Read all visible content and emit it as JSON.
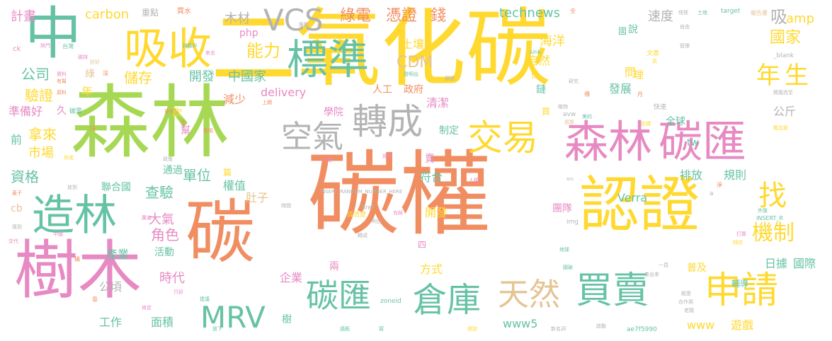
{
  "palette": {
    "orange": "#f08e62",
    "green": "#a6d854",
    "yellow": "#ffd92f",
    "pink": "#e78ac3",
    "teal": "#66c2a5",
    "gray": "#b3b3b3",
    "tan": "#e5c494",
    "blue": "#8da0cb"
  },
  "words": [
    {
      "text": "碳權",
      "color": "orange",
      "weight": 1
    },
    {
      "text": "二氧化碳",
      "color": "yellow",
      "weight": 0.9
    },
    {
      "text": "森林",
      "color": "green",
      "weight": 0.8
    },
    {
      "text": "認證",
      "color": "yellow",
      "weight": 0.6
    },
    {
      "text": "碳",
      "color": "orange",
      "weight": 0.6
    },
    {
      "text": "樹木",
      "color": "pink",
      "weight": 0.55
    },
    {
      "text": "中",
      "color": "teal",
      "weight": 0.55
    },
    {
      "text": "吸收",
      "color": "yellow",
      "weight": 0.5
    },
    {
      "text": "森林",
      "color": "pink",
      "weight": 0.45
    },
    {
      "text": "碳匯",
      "color": "pink",
      "weight": 0.45
    },
    {
      "text": "造林",
      "color": "teal",
      "weight": 0.45
    },
    {
      "text": "標準",
      "color": "teal",
      "weight": 0.42
    },
    {
      "text": "空氣",
      "color": "gray",
      "weight": 0.38
    },
    {
      "text": "轉成",
      "color": "gray",
      "weight": 0.38
    },
    {
      "text": "交易",
      "color": "yellow",
      "weight": 0.36
    },
    {
      "text": "買賣",
      "color": "teal",
      "weight": 0.36
    },
    {
      "text": "申請",
      "color": "yellow",
      "weight": 0.36
    },
    {
      "text": "倉庫",
      "color": "teal",
      "weight": 0.34
    },
    {
      "text": "天然",
      "color": "tan",
      "weight": 0.32
    },
    {
      "text": "碳匯",
      "color": "teal",
      "weight": 0.3
    },
    {
      "text": "MRV",
      "color": "teal",
      "weight": 0.28
    },
    {
      "text": "VCS",
      "color": "gray",
      "weight": 0.26
    },
    {
      "text": "找",
      "color": "yellow",
      "weight": 0.26
    },
    {
      "text": "機制",
      "color": "yellow",
      "weight": 0.24
    },
    {
      "text": "年",
      "color": "yellow",
      "weight": 0.22
    },
    {
      "text": "生",
      "color": "yellow",
      "weight": 0.22
    },
    {
      "text": "能力",
      "color": "yellow",
      "weight": 0.18
    },
    {
      "text": "綠電",
      "color": "orange",
      "weight": 0.16
    },
    {
      "text": "憑證",
      "color": "orange",
      "weight": 0.16
    },
    {
      "text": "錢",
      "color": "orange",
      "weight": 0.16
    },
    {
      "text": "計畫",
      "color": "pink",
      "weight": 0.12
    },
    {
      "text": "carbon",
      "color": "yellow",
      "weight": 0.12
    },
    {
      "text": "重點",
      "color": "gray",
      "weight": 0.08
    },
    {
      "text": "買水",
      "color": "orange",
      "weight": 0.06
    },
    {
      "text": "木材",
      "color": "gray",
      "weight": 0.12
    },
    {
      "text": "technews",
      "color": "teal",
      "weight": 0.12
    },
    {
      "text": "速度",
      "color": "gray",
      "weight": 0.12
    },
    {
      "text": "吸",
      "color": "gray",
      "weight": 0.16
    },
    {
      "text": "amp",
      "color": "yellow",
      "weight": 0.12
    },
    {
      "text": "國家",
      "color": "yellow",
      "weight": 0.14
    },
    {
      "text": "公司",
      "color": "teal",
      "weight": 0.14
    },
    {
      "text": "驗證",
      "color": "yellow",
      "weight": 0.14
    },
    {
      "text": "儲存",
      "color": "yellow",
      "weight": 0.14
    },
    {
      "text": "開發",
      "color": "teal",
      "weight": 0.12
    },
    {
      "text": "中國家",
      "color": "teal",
      "weight": 0.12
    },
    {
      "text": "CDM",
      "color": "tan",
      "weight": 0.16
    },
    {
      "text": "土壤",
      "color": "yellow",
      "weight": 0.12
    },
    {
      "text": "海洋",
      "color": "yellow",
      "weight": 0.12
    },
    {
      "text": "自然",
      "color": "yellow",
      "weight": 0.12
    },
    {
      "text": "人工",
      "color": "orange",
      "weight": 0.1
    },
    {
      "text": "政府",
      "color": "orange",
      "weight": 0.1
    },
    {
      "text": "減少",
      "color": "orange",
      "weight": 0.12
    },
    {
      "text": "delivery",
      "color": "pink",
      "weight": 0.12
    },
    {
      "text": "準備好",
      "color": "pink",
      "weight": 0.12
    },
    {
      "text": "拿來",
      "color": "yellow",
      "weight": 0.14
    },
    {
      "text": "市場",
      "color": "yellow",
      "weight": 0.12
    },
    {
      "text": "資格",
      "color": "teal",
      "weight": 0.14
    },
    {
      "text": "查驗",
      "color": "teal",
      "weight": 0.14
    },
    {
      "text": "單位",
      "color": "teal",
      "weight": 0.14
    },
    {
      "text": "聯合國",
      "color": "teal",
      "weight": 0.1
    },
    {
      "text": "角色",
      "color": "pink",
      "weight": 0.14
    },
    {
      "text": "大氣",
      "color": "pink",
      "weight": 0.12
    },
    {
      "text": "活動",
      "color": "teal",
      "weight": 0.1
    },
    {
      "text": "權值",
      "color": "teal",
      "weight": 0.1
    },
    {
      "text": "肚子",
      "color": "tan",
      "weight": 0.12
    },
    {
      "text": "公頃",
      "color": "gray",
      "weight": 0.12
    },
    {
      "text": "時代",
      "color": "pink",
      "weight": 0.12
    },
    {
      "text": "產業",
      "color": "teal",
      "weight": 0.12
    },
    {
      "text": "工作",
      "color": "teal",
      "weight": 0.12
    },
    {
      "text": "面積",
      "color": "teal",
      "weight": 0.12
    },
    {
      "text": "企業",
      "color": "pink",
      "weight": 0.12
    },
    {
      "text": "方式",
      "color": "yellow",
      "weight": 0.12
    },
    {
      "text": "開發",
      "color": "yellow",
      "weight": 0.12
    },
    {
      "text": "www5",
      "color": "teal",
      "weight": 0.12
    },
    {
      "text": "www",
      "color": "yellow",
      "weight": 0.12
    },
    {
      "text": "遊戲",
      "color": "yellow",
      "weight": 0.12
    },
    {
      "text": "Verra",
      "color": "teal",
      "weight": 0.12
    },
    {
      "text": "規則",
      "color": "teal",
      "weight": 0.12
    },
    {
      "text": "排放",
      "color": "teal",
      "weight": 0.12
    },
    {
      "text": "團隊",
      "color": "pink",
      "weight": 0.12
    },
    {
      "text": "普及",
      "color": "yellow",
      "weight": 0.12
    },
    {
      "text": "日據",
      "color": "teal",
      "weight": 0.12
    },
    {
      "text": "國際",
      "color": "teal",
      "weight": 0.12
    },
    {
      "text": "輔導",
      "color": "teal",
      "weight": 0.12
    },
    {
      "text": "公斤",
      "color": "gray",
      "weight": 0.12
    },
    {
      "text": "全球",
      "color": "teal",
      "weight": 0.12
    },
    {
      "text": "發展",
      "color": "teal",
      "weight": 0.12
    },
    {
      "text": "清潔",
      "color": "pink",
      "weight": 0.12
    },
    {
      "text": "學院",
      "color": "pink",
      "weight": 0.12
    },
    {
      "text": "制定",
      "color": "teal",
      "weight": 0.12
    },
    {
      "text": "符合",
      "color": "teal",
      "weight": 0.12
    },
    {
      "text": "通過",
      "color": "teal",
      "weight": 0.12
    },
    {
      "text": "tw",
      "color": "teal",
      "weight": 0.12
    },
    {
      "text": "php",
      "color": "pink",
      "weight": 0.12
    },
    {
      "text": "cb",
      "color": "tan",
      "weight": 0.12
    },
    {
      "text": "前",
      "color": "teal",
      "weight": 0.12
    },
    {
      "text": "問",
      "color": "yellow",
      "weight": 0.12
    },
    {
      "text": "理",
      "color": "yellow",
      "weight": 0.12
    },
    {
      "text": "說",
      "color": "teal",
      "weight": 0.12
    },
    {
      "text": "國",
      "color": "teal",
      "weight": 0.1
    },
    {
      "text": "份",
      "color": "yellow",
      "weight": 0.1
    },
    {
      "text": "鏈",
      "color": "teal",
      "weight": 0.1
    },
    {
      "text": "買",
      "color": "yellow",
      "weight": 0.1
    },
    {
      "text": "賣",
      "color": "pink",
      "weight": 0.12
    },
    {
      "text": "砍",
      "color": "yellow",
      "weight": 0.12
    },
    {
      "text": "幫",
      "color": "pink",
      "weight": 0.12
    },
    {
      "text": "篇",
      "color": "yellow",
      "weight": 0.1
    },
    {
      "text": "兩",
      "color": "pink",
      "weight": 0.12
    },
    {
      "text": "樹",
      "color": "teal",
      "weight": 0.12
    },
    {
      "text": "久",
      "color": "pink",
      "weight": 0.12
    },
    {
      "text": "綠",
      "color": "tan",
      "weight": 0.1
    },
    {
      "text": "四",
      "color": "pink",
      "weight": 0.1
    },
    {
      "text": "年",
      "color": "yellow",
      "weight": 0.14
    },
    {
      "text": "ck",
      "color": "pink",
      "weight": 0.08
    },
    {
      "text": "台灣",
      "color": "teal",
      "weight": 0.06
    },
    {
      "text": "熱門",
      "color": "pink",
      "weight": 0.05
    },
    {
      "text": "排碳戶",
      "color": "teal",
      "weight": 0.05
    },
    {
      "text": "來去",
      "color": "pink",
      "weight": 0.05
    },
    {
      "text": "推動",
      "color": "gray",
      "weight": 0.05
    },
    {
      "text": "碳排",
      "color": "pink",
      "weight": 0.05
    },
    {
      "text": "好好",
      "color": "tan",
      "weight": 0.05
    },
    {
      "text": "資料",
      "color": "pink",
      "weight": 0.05
    },
    {
      "text": "有幫",
      "color": "orange",
      "weight": 0.05
    },
    {
      "text": "原料",
      "color": "orange",
      "weight": 0.05
    },
    {
      "text": "碳電",
      "color": "teal",
      "weight": 0.06
    },
    {
      "text": "更多",
      "color": "orange",
      "weight": 0.05
    },
    {
      "text": "上網",
      "color": "orange",
      "weight": 0.05
    },
    {
      "text": "發明出",
      "color": "teal",
      "weight": 0.05
    },
    {
      "text": "頭號",
      "color": "gray",
      "weight": 0.05
    },
    {
      "text": "sink",
      "color": "teal",
      "weight": 0.06
    },
    {
      "text": "target",
      "color": "teal",
      "weight": 0.06
    },
    {
      "text": "報告書",
      "color": "tan",
      "weight": 0.05
    },
    {
      "text": "怪怪",
      "color": "gray",
      "weight": 0.05
    },
    {
      "text": "自由",
      "color": "gray",
      "weight": 0.05
    },
    {
      "text": "土地",
      "color": "teal",
      "weight": 0.05
    },
    {
      "text": "管理",
      "color": "gray",
      "weight": 0.05
    },
    {
      "text": "_blank",
      "color": "gray",
      "weight": 0.06
    },
    {
      "text": "文章",
      "color": "yellow",
      "weight": 0.05
    },
    {
      "text": "高",
      "color": "yellow",
      "weight": 0.05
    },
    {
      "text": "研究",
      "color": "gray",
      "weight": 0.05
    },
    {
      "text": "植物",
      "color": "gray",
      "weight": 0.05
    },
    {
      "text": "快速",
      "color": "gray",
      "weight": 0.06
    },
    {
      "text": "概念股",
      "color": "yellow",
      "weight": 0.05
    },
    {
      "text": "開風而至",
      "color": "gray",
      "weight": 0.05
    },
    {
      "text": "avw",
      "color": "gray",
      "weight": 0.06
    },
    {
      "text": "美的",
      "color": "teal",
      "weight": 0.05
    },
    {
      "text": "預算",
      "color": "tan",
      "weight": 0.05
    },
    {
      "text": "花錢",
      "color": "yellow",
      "weight": 0.05
    },
    {
      "text": "效果",
      "color": "pink",
      "weight": 0.05
    },
    {
      "text": "行使",
      "color": "pink",
      "weight": 0.05
    },
    {
      "text": "存底",
      "color": "yellow",
      "weight": 0.05
    },
    {
      "text": "政策",
      "color": "gray",
      "weight": 0.05
    },
    {
      "text": "放到",
      "color": "gray",
      "weight": 0.05
    },
    {
      "text": "蓋子",
      "color": "orange",
      "weight": 0.05
    },
    {
      "text": "時間",
      "color": "gray",
      "weight": 0.05
    },
    {
      "text": "INSERT_RANDOM_NUMBER_HERE",
      "color": "gray",
      "weight": 0.05
    },
    {
      "text": "href",
      "color": "gray",
      "weight": 0.06
    },
    {
      "text": "人稱",
      "color": "pink",
      "weight": 0.05
    },
    {
      "text": "img",
      "color": "gray",
      "weight": 0.06
    },
    {
      "text": "src",
      "color": "gray",
      "weight": 0.05
    },
    {
      "text": "INSERT_R",
      "color": "teal",
      "weight": 0.05
    },
    {
      "text": "外匯",
      "color": "teal",
      "weight": 0.05
    },
    {
      "text": "打算",
      "color": "pink",
      "weight": 0.05
    },
    {
      "text": "拜訪",
      "color": "yellow",
      "weight": 0.05
    },
    {
      "text": "地球",
      "color": "teal",
      "weight": 0.05
    },
    {
      "text": "國破",
      "color": "teal",
      "weight": 0.05
    },
    {
      "text": "一頁",
      "color": "gray",
      "weight": 0.05
    },
    {
      "text": "查出來",
      "color": "gray",
      "weight": 0.05
    },
    {
      "text": "紙漿",
      "color": "gray",
      "weight": 0.05
    },
    {
      "text": "合作用",
      "color": "gray",
      "weight": 0.05
    },
    {
      "text": "老闆",
      "color": "gray",
      "weight": 0.05
    },
    {
      "text": "新名詞",
      "color": "gray",
      "weight": 0.05
    },
    {
      "text": "啟動",
      "color": "gray",
      "weight": 0.05
    },
    {
      "text": "ae7f5990",
      "color": "teal",
      "weight": 0.06
    },
    {
      "text": "放下",
      "color": "teal",
      "weight": 0.05
    },
    {
      "text": "語紙",
      "color": "teal",
      "weight": 0.05
    },
    {
      "text": "寫",
      "color": "teal",
      "weight": 0.05
    },
    {
      "text": "總說",
      "color": "yellow",
      "weight": 0.05
    },
    {
      "text": "zoneid",
      "color": "teal",
      "weight": 0.06
    },
    {
      "text": "建議",
      "color": "teal",
      "weight": 0.05
    },
    {
      "text": "只好",
      "color": "pink",
      "weight": 0.05
    },
    {
      "text": "肯定",
      "color": "pink",
      "weight": 0.05
    },
    {
      "text": "猜到",
      "color": "gray",
      "weight": 0.05
    },
    {
      "text": "交代",
      "color": "pink",
      "weight": 0.05
    },
    {
      "text": "中國",
      "color": "pink",
      "weight": 0.05
    },
    {
      "text": "厲害",
      "color": "pink",
      "weight": 0.05
    },
    {
      "text": "搞清楚",
      "color": "yellow",
      "weight": 0.05
    },
    {
      "text": "明白",
      "color": "gray",
      "weight": 0.05
    },
    {
      "text": "充掉",
      "color": "pink",
      "weight": 0.05
    },
    {
      "text": "轉成",
      "color": "gray",
      "weight": 0.05
    },
    {
      "text": "全",
      "color": "orange",
      "weight": 0.05
    },
    {
      "text": "沒",
      "color": "orange",
      "weight": 0.05
    },
    {
      "text": "快",
      "color": "orange",
      "weight": 0.05
    },
    {
      "text": "生",
      "color": "orange",
      "weight": 0.05
    },
    {
      "text": "動用",
      "color": "orange",
      "weight": 0.05
    },
    {
      "text": "傳",
      "color": "orange",
      "weight": 0.05
    },
    {
      "text": "月",
      "color": "orange",
      "weight": 0.05
    },
    {
      "text": "橫",
      "color": "orange",
      "weight": 0.05
    },
    {
      "text": "靠",
      "color": "orange",
      "weight": 0.05
    },
    {
      "text": "淨",
      "color": "orange",
      "weight": 0.05
    },
    {
      "text": "a",
      "color": "gray",
      "weight": 0.05
    }
  ]
}
